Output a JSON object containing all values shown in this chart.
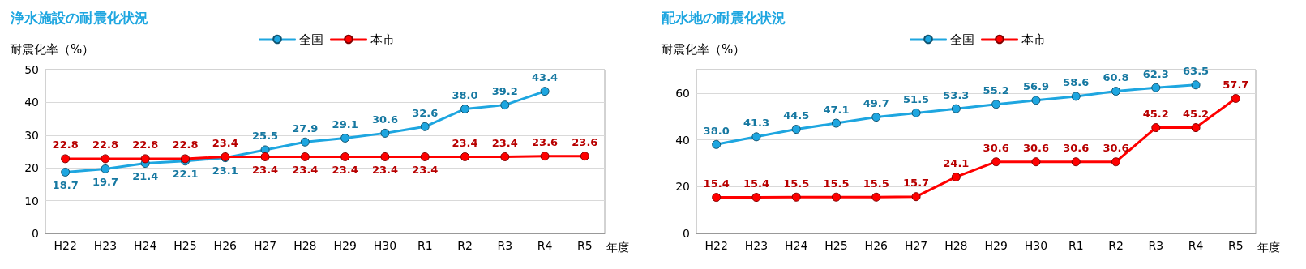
{
  "chart_data": [
    {
      "type": "line",
      "title": "浄水施設の耐震化状況",
      "ylabel": "耐震化率（%）",
      "xlabel": "年度",
      "categories": [
        "H22",
        "H23",
        "H24",
        "H25",
        "H26",
        "H27",
        "H28",
        "H29",
        "H30",
        "R1",
        "R2",
        "R3",
        "R4",
        "R5"
      ],
      "series": [
        {
          "name": "全国",
          "color": "#1ea6e0",
          "values": [
            18.7,
            19.7,
            21.4,
            22.1,
            23.1,
            25.5,
            27.9,
            29.1,
            30.6,
            32.6,
            38.0,
            39.2,
            43.4,
            null
          ],
          "value_labels": [
            "18.7",
            "19.7",
            "21.4",
            "22.1",
            "23.1",
            "25.5",
            "27.9",
            "29.1",
            "30.6",
            "32.6",
            "38.0",
            "39.2",
            "43.4",
            null
          ]
        },
        {
          "name": "本市",
          "color": "#ff0000",
          "values": [
            22.8,
            22.8,
            22.8,
            22.8,
            23.4,
            23.4,
            23.4,
            23.4,
            23.4,
            23.4,
            23.4,
            23.4,
            23.6,
            23.6
          ],
          "value_labels": [
            "22.8",
            "22.8",
            "22.8",
            "22.8",
            "23.4",
            "23.4",
            "23.4",
            "23.4",
            "23.4",
            "23.4",
            "23.4",
            "23.4",
            "23.6",
            "23.6"
          ]
        }
      ],
      "ylim": [
        0,
        50
      ],
      "yticks": [
        0,
        10,
        20,
        30,
        40,
        50
      ],
      "grid": "y",
      "legend": "top",
      "marker": "circle",
      "line_style": "solid"
    },
    {
      "type": "line",
      "title": "配水地の耐震化状況",
      "ylabel": "耐震化率（%）",
      "xlabel": "年度",
      "categories": [
        "H22",
        "H23",
        "H24",
        "H25",
        "H26",
        "H27",
        "H28",
        "H29",
        "H30",
        "R1",
        "R2",
        "R3",
        "R4",
        "R5"
      ],
      "series": [
        {
          "name": "全国",
          "color": "#1ea6e0",
          "values": [
            38.0,
            41.3,
            44.5,
            47.1,
            49.7,
            51.5,
            53.3,
            55.2,
            56.9,
            58.6,
            60.8,
            62.3,
            63.5,
            null
          ],
          "value_labels": [
            "38.0",
            "41.3",
            "44.5",
            "47.1",
            "49.7",
            "51.5",
            "53.3",
            "55.2",
            "56.9",
            "58.6",
            "60.8",
            "62.3",
            "63.5",
            null
          ]
        },
        {
          "name": "本市",
          "color": "#ff0000",
          "values": [
            15.4,
            15.4,
            15.5,
            15.5,
            15.5,
            15.7,
            24.1,
            30.6,
            30.6,
            30.6,
            30.6,
            45.2,
            45.2,
            57.7
          ],
          "value_labels": [
            "15.4",
            "15.4",
            "15.5",
            "15.5",
            "15.5",
            "15.7",
            "24.1",
            "30.6",
            "30.6",
            "30.6",
            "30.6",
            "45.2",
            "45.2",
            "57.7"
          ]
        }
      ],
      "ylim": [
        0,
        70
      ],
      "yticks": [
        0,
        20,
        40,
        60
      ],
      "grid": "y",
      "legend": "top",
      "marker": "circle",
      "line_style": "solid"
    }
  ]
}
